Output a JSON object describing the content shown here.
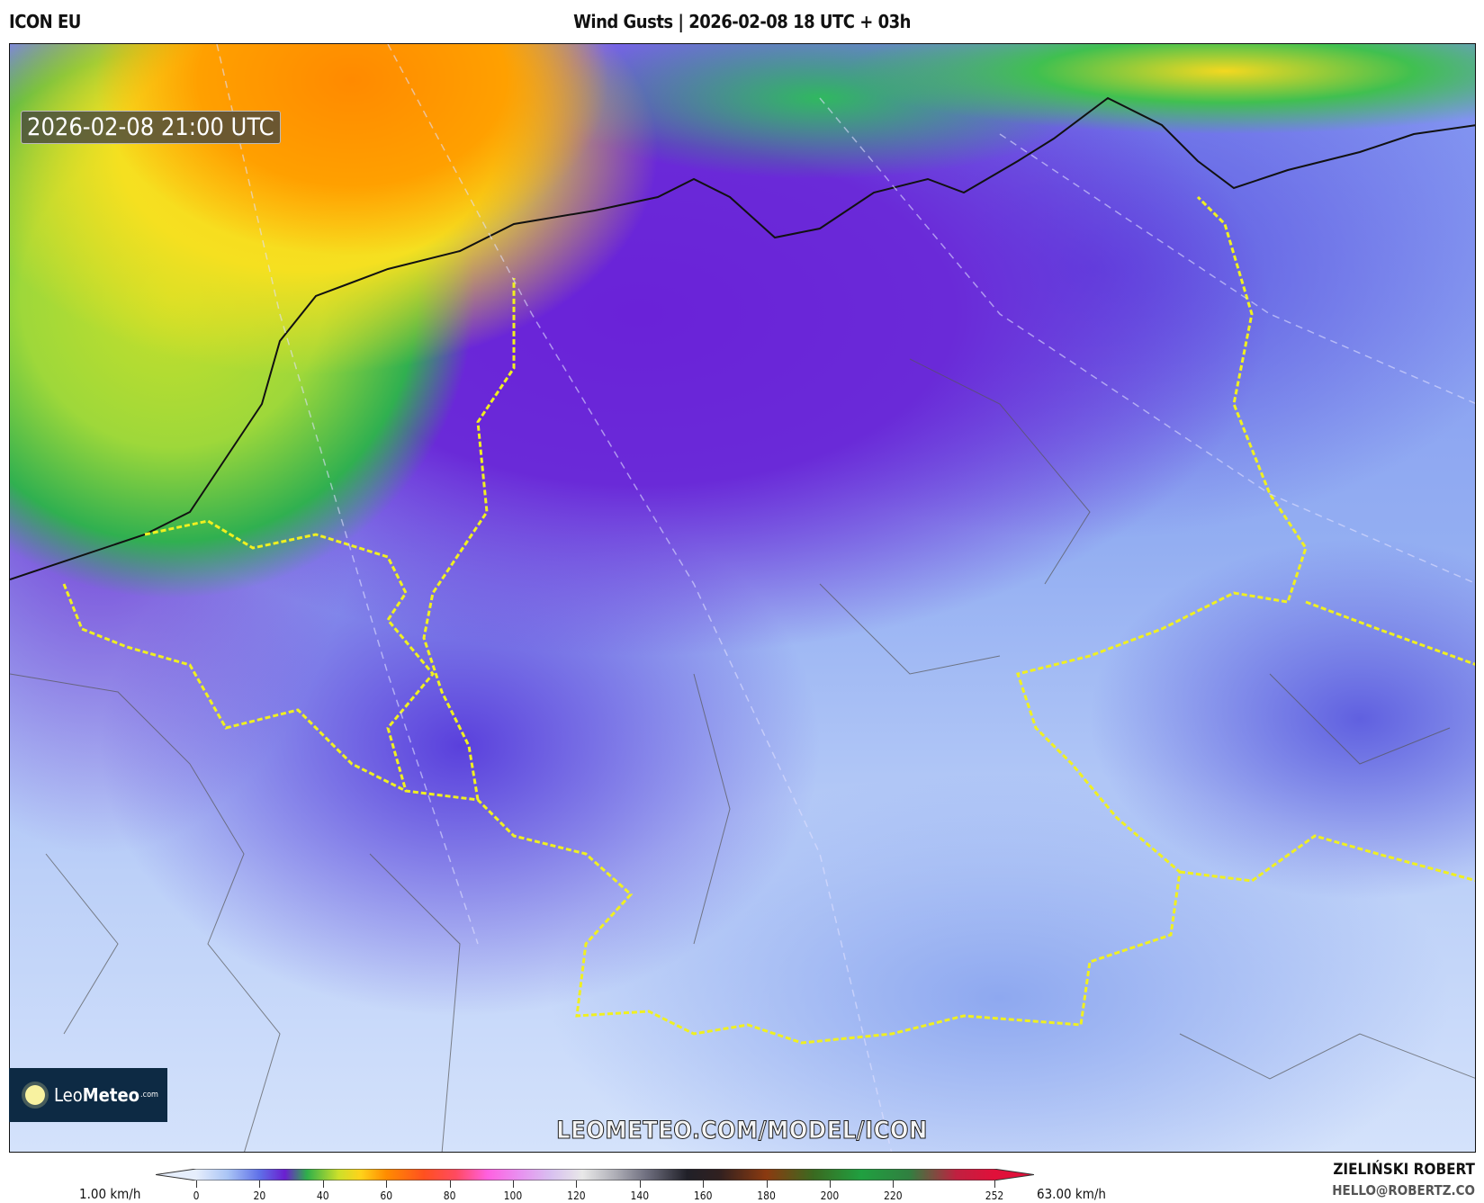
{
  "header": {
    "model": "ICON EU",
    "title": "Wind Gusts | 2026-02-08 18 UTC + 03h"
  },
  "map": {
    "valid_time": "2026-02-08 21:00 UTC",
    "watermark": "LEOMETEO.COM/MODEL/ICON",
    "logo_text": {
      "a": "Leo",
      "b": "Meteo",
      "c": ".com"
    },
    "colors": {
      "strong_gusts": "#ff8a00",
      "moderate": "#30b050",
      "light": "#6a22d8",
      "calm": "#d4e2fb",
      "country_border": "#f0f020"
    }
  },
  "legend": {
    "min_label": "1.00 km/h",
    "max_label": "63.00 km/h",
    "ticks": [
      "0",
      "20",
      "40",
      "60",
      "80",
      "100",
      "120",
      "140",
      "160",
      "180",
      "200",
      "220",
      "252"
    ],
    "tick_values": [
      0,
      20,
      40,
      60,
      80,
      100,
      120,
      140,
      160,
      180,
      200,
      220,
      252
    ],
    "stops": [
      [
        0,
        "#e6eefc"
      ],
      [
        10,
        "#a9c4f5"
      ],
      [
        20,
        "#5f70e8"
      ],
      [
        28,
        "#6a1fd0"
      ],
      [
        35,
        "#2fb04a"
      ],
      [
        45,
        "#cde02a"
      ],
      [
        52,
        "#ffd21a"
      ],
      [
        60,
        "#ff8c00"
      ],
      [
        72,
        "#ff5020"
      ],
      [
        82,
        "#ff4a60"
      ],
      [
        92,
        "#ff60e0"
      ],
      [
        102,
        "#e890f0"
      ],
      [
        112,
        "#d8c0f0"
      ],
      [
        122,
        "#e8e8e8"
      ],
      [
        132,
        "#b0b0b8"
      ],
      [
        142,
        "#707080"
      ],
      [
        155,
        "#202028"
      ],
      [
        165,
        "#302020"
      ],
      [
        180,
        "#8b3a10"
      ],
      [
        195,
        "#3a6a20"
      ],
      [
        210,
        "#20a040"
      ],
      [
        225,
        "#308040"
      ],
      [
        240,
        "#c02040"
      ],
      [
        252,
        "#e0103a"
      ]
    ]
  },
  "credits": {
    "author": "ZIELIŃSKI ROBERT",
    "email": "HELLO@ROBERTZ.CO"
  }
}
